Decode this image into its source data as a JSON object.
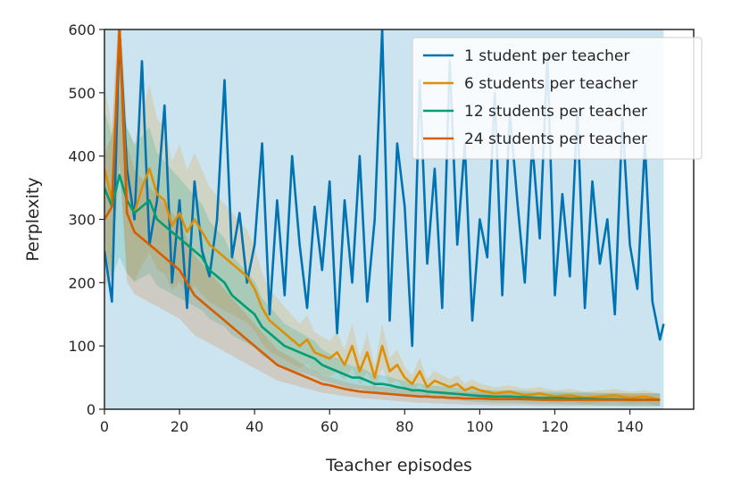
{
  "chart_data": {
    "type": "line",
    "title": "",
    "xlabel": "Teacher episodes",
    "ylabel": "Perplexity",
    "xlim": [
      0,
      157
    ],
    "ylim": [
      0,
      600
    ],
    "xticks": [
      0,
      20,
      40,
      60,
      80,
      100,
      120,
      140
    ],
    "yticks": [
      0,
      100,
      200,
      300,
      400,
      500,
      600
    ],
    "grid": false,
    "legend_position": "top-right",
    "series": [
      {
        "name": "1 student per teacher",
        "color": "#0173b2",
        "band": true,
        "x": [
          0,
          2,
          4,
          6,
          8,
          10,
          12,
          14,
          16,
          18,
          20,
          22,
          24,
          26,
          28,
          30,
          32,
          34,
          36,
          38,
          40,
          42,
          44,
          46,
          48,
          50,
          52,
          54,
          56,
          58,
          60,
          62,
          64,
          66,
          68,
          70,
          72,
          74,
          76,
          78,
          80,
          82,
          84,
          86,
          88,
          90,
          92,
          94,
          96,
          98,
          100,
          102,
          104,
          106,
          108,
          110,
          112,
          114,
          116,
          118,
          120,
          122,
          124,
          126,
          128,
          130,
          132,
          134,
          136,
          138,
          140,
          142,
          144,
          146,
          148,
          149
        ],
        "y": [
          250,
          170,
          600,
          380,
          300,
          550,
          260,
          330,
          480,
          200,
          330,
          160,
          360,
          250,
          210,
          300,
          520,
          240,
          310,
          200,
          260,
          420,
          150,
          330,
          180,
          400,
          260,
          160,
          320,
          220,
          360,
          120,
          330,
          200,
          400,
          170,
          300,
          600,
          140,
          420,
          320,
          100,
          520,
          230,
          380,
          160,
          550,
          260,
          420,
          140,
          300,
          240,
          500,
          180,
          470,
          330,
          200,
          420,
          270,
          560,
          180,
          340,
          210,
          470,
          160,
          360,
          230,
          300,
          150,
          460,
          260,
          190,
          420,
          170,
          110,
          135
        ]
      },
      {
        "name": "6 students per teacher",
        "color": "#de8f05",
        "band": true,
        "x": [
          0,
          2,
          4,
          6,
          8,
          10,
          12,
          14,
          16,
          18,
          20,
          22,
          24,
          26,
          28,
          30,
          32,
          34,
          36,
          38,
          40,
          42,
          44,
          46,
          48,
          50,
          52,
          54,
          56,
          58,
          60,
          62,
          64,
          66,
          68,
          70,
          72,
          74,
          76,
          78,
          80,
          82,
          84,
          86,
          88,
          90,
          92,
          94,
          96,
          98,
          100,
          104,
          108,
          112,
          116,
          120,
          124,
          128,
          132,
          136,
          140,
          144,
          148
        ],
        "y": [
          380,
          330,
          600,
          330,
          310,
          350,
          380,
          340,
          330,
          290,
          310,
          280,
          300,
          280,
          260,
          250,
          240,
          230,
          220,
          210,
          190,
          160,
          140,
          130,
          120,
          110,
          100,
          110,
          90,
          85,
          80,
          90,
          70,
          100,
          60,
          90,
          50,
          100,
          60,
          70,
          50,
          40,
          60,
          35,
          45,
          40,
          35,
          40,
          30,
          35,
          30,
          25,
          28,
          22,
          25,
          20,
          22,
          18,
          20,
          22,
          18,
          20,
          15
        ]
      },
      {
        "name": "12 students per teacher",
        "color": "#029e73",
        "band": true,
        "x": [
          0,
          2,
          4,
          6,
          8,
          10,
          12,
          14,
          16,
          18,
          20,
          22,
          24,
          26,
          28,
          30,
          32,
          34,
          36,
          38,
          40,
          42,
          44,
          46,
          48,
          50,
          52,
          54,
          56,
          58,
          60,
          62,
          64,
          66,
          68,
          70,
          72,
          74,
          76,
          78,
          80,
          82,
          84,
          86,
          88,
          90,
          92,
          94,
          96,
          98,
          100,
          104,
          108,
          112,
          116,
          120,
          124,
          128,
          132,
          136,
          140,
          144,
          148
        ],
        "y": [
          350,
          320,
          370,
          330,
          310,
          320,
          330,
          300,
          290,
          280,
          270,
          260,
          250,
          240,
          220,
          210,
          200,
          180,
          170,
          160,
          150,
          130,
          120,
          110,
          100,
          95,
          90,
          85,
          80,
          70,
          65,
          60,
          55,
          50,
          50,
          45,
          40,
          40,
          38,
          35,
          33,
          30,
          30,
          28,
          27,
          26,
          25,
          24,
          23,
          22,
          21,
          20,
          20,
          19,
          18,
          18,
          17,
          17,
          16,
          16,
          15,
          15,
          15
        ]
      },
      {
        "name": "24 students per teacher",
        "color": "#d55e00",
        "band": true,
        "x": [
          0,
          2,
          4,
          6,
          8,
          10,
          12,
          14,
          16,
          18,
          20,
          22,
          24,
          26,
          28,
          30,
          32,
          34,
          36,
          38,
          40,
          42,
          44,
          46,
          48,
          50,
          52,
          54,
          56,
          58,
          60,
          62,
          64,
          66,
          68,
          70,
          72,
          74,
          76,
          78,
          80,
          82,
          84,
          86,
          88,
          90,
          92,
          94,
          96,
          98,
          100,
          104,
          108,
          112,
          116,
          120,
          124,
          128,
          132,
          136,
          140,
          144,
          148
        ],
        "y": [
          300,
          320,
          600,
          310,
          280,
          270,
          260,
          250,
          240,
          230,
          220,
          200,
          180,
          170,
          160,
          150,
          140,
          130,
          120,
          110,
          100,
          90,
          80,
          70,
          65,
          60,
          55,
          50,
          45,
          40,
          38,
          35,
          32,
          30,
          28,
          27,
          26,
          25,
          24,
          23,
          22,
          21,
          20,
          20,
          19,
          19,
          18,
          18,
          17,
          17,
          17,
          16,
          16,
          16,
          15,
          15,
          15,
          15,
          15,
          15,
          15,
          15,
          15
        ]
      }
    ]
  }
}
